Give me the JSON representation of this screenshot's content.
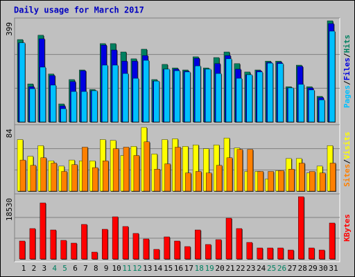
{
  "title": "Daily usage for March 2017",
  "legend_separator": "/",
  "chart_data": [
    {
      "type": "bar",
      "ylim": [
        0,
        399
      ],
      "yticks": [
        399
      ],
      "grid_divisions": 3,
      "series": [
        {
          "name": "Hits",
          "color": "#008060",
          "values": [
            325,
            150,
            342,
            189,
            71,
            167,
            205,
            128,
            309,
            309,
            276,
            249,
            287,
            167,
            227,
            213,
            205,
            257,
            213,
            254,
            276,
            230,
            197,
            205,
            240,
            240,
            139,
            224,
            139,
            101,
            399
          ]
        },
        {
          "name": "Files",
          "color": "#0000e0",
          "values": [
            312,
            139,
            328,
            183,
            63,
            159,
            202,
            123,
            303,
            284,
            240,
            240,
            262,
            161,
            208,
            208,
            200,
            251,
            208,
            230,
            262,
            208,
            186,
            202,
            235,
            235,
            134,
            219,
            134,
            96,
            388
          ]
        },
        {
          "name": "Pages",
          "color": "#00c0ff",
          "values": [
            312,
            131,
            216,
            145,
            52,
            120,
            120,
            123,
            224,
            224,
            191,
            172,
            243,
            161,
            208,
            202,
            197,
            221,
            208,
            191,
            249,
            172,
            186,
            197,
            232,
            230,
            134,
            148,
            126,
            87,
            358
          ]
        }
      ]
    },
    {
      "type": "bar",
      "ylim": [
        0,
        84
      ],
      "yticks": [
        84
      ],
      "grid_divisions": 3,
      "series": [
        {
          "name": "Visits",
          "color": "#ffff00",
          "values": [
            68,
            46,
            60,
            40,
            33,
            41,
            40,
            40,
            68,
            67,
            47,
            59,
            84,
            49,
            68,
            69,
            59,
            61,
            56,
            61,
            70,
            57,
            26,
            26,
            16,
            27,
            43,
            43,
            24,
            33,
            60
          ]
        },
        {
          "name": "Sites",
          "color": "#ff8000",
          "values": [
            41,
            34,
            44,
            37,
            26,
            35,
            58,
            31,
            40,
            56,
            58,
            47,
            65,
            29,
            36,
            58,
            24,
            26,
            24,
            34,
            44,
            55,
            55,
            26,
            26,
            27,
            29,
            37,
            26,
            24,
            37
          ]
        }
      ]
    },
    {
      "type": "bar",
      "ylim": [
        0,
        18530
      ],
      "yticks": [
        18530
      ],
      "grid_divisions": 3,
      "categories": [
        "1",
        "2",
        "3",
        "4",
        "5",
        "6",
        "7",
        "8",
        "9",
        "10",
        "11",
        "12",
        "13",
        "14",
        "15",
        "16",
        "17",
        "18",
        "19",
        "20",
        "21",
        "22",
        "23",
        "24",
        "25",
        "26",
        "27",
        "28",
        "29",
        "30",
        "31"
      ],
      "category_colors": [
        "#000000",
        "#000000",
        "#000000",
        "#008060",
        "#008060",
        "#000000",
        "#000000",
        "#000000",
        "#000000",
        "#000000",
        "#008060",
        "#008060",
        "#000000",
        "#000000",
        "#000000",
        "#000000",
        "#000000",
        "#008060",
        "#008060",
        "#000000",
        "#000000",
        "#000000",
        "#000000",
        "#000000",
        "#008060",
        "#008060",
        "#000000",
        "#000000",
        "#000000",
        "#000000",
        "#000000"
      ],
      "series": [
        {
          "name": "KBytes",
          "color": "#ff0000",
          "values": [
            5353,
            9059,
            16677,
            8647,
            5559,
            4735,
            10294,
            2059,
            8853,
            12559,
            9677,
            7618,
            5971,
            2882,
            6588,
            5353,
            3706,
            8647,
            4324,
            5765,
            12147,
            9059,
            4941,
            3294,
            3294,
            3294,
            2677,
            18530,
            3294,
            2677,
            10706
          ]
        }
      ]
    }
  ]
}
